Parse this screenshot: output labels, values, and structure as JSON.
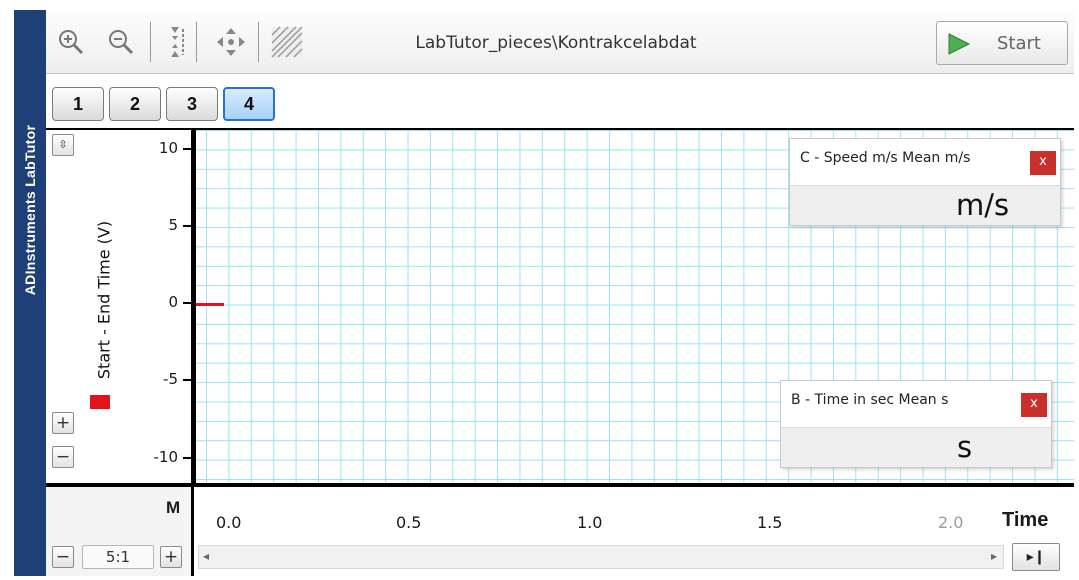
{
  "sidebar": {
    "brand": "ADInstruments  LabTutor"
  },
  "toolbar": {
    "file_title": "LabTutor_pieces\\Kontrakcelabdat",
    "start_label": "Start",
    "icons": [
      "zoom-in-icon",
      "zoom-out-icon",
      "vertical-autoscale-icon",
      "pan-icon",
      "hatch-pattern-icon",
      "play-icon"
    ]
  },
  "tabs": [
    {
      "label": "1",
      "active": false
    },
    {
      "label": "2",
      "active": false
    },
    {
      "label": "3",
      "active": false
    },
    {
      "label": "4",
      "active": true
    }
  ],
  "chart": {
    "channel_label": "Start - End Time (V)",
    "y_ticks": [
      "10",
      "5",
      "0",
      "-5",
      "-10"
    ],
    "x_ticks": [
      "0.0",
      "0.5",
      "1.0",
      "1.5",
      "2.0"
    ],
    "x_axis_label": "Time",
    "marker_label": "M",
    "grid": true,
    "trace_color": "#e3131a",
    "grid_color": "#9be3f5"
  },
  "panels": {
    "speed": {
      "title": "C - Speed m/s Mean m/s",
      "close_label": "x",
      "unit": "m/s"
    },
    "time": {
      "title": "B - Time in sec Mean s",
      "close_label": "x",
      "unit": "s"
    }
  },
  "controls": {
    "zoom_out_label": "−",
    "zoom_in_label": "+",
    "horizontal_zoom_value": "5:1",
    "y_plus_label": "+",
    "y_minus_label": "−",
    "end_button_label": "▸❙"
  },
  "colors": {
    "sidebar": "#1e3f78",
    "accent": "#2a72c8",
    "close": "#c9302c",
    "trace": "#e3131a"
  }
}
